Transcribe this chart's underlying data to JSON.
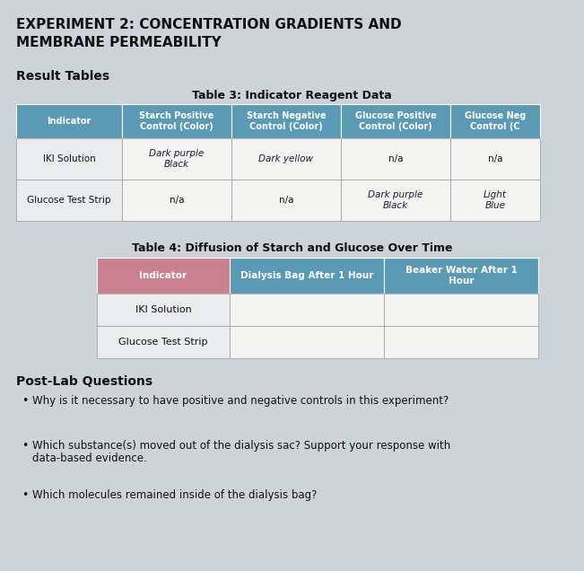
{
  "title_line1": "EXPERIMENT 2: CONCENTRATION GRADIENTS AND",
  "title_line2": "MEMBRANE PERMEABILITY",
  "section_result": "Result Tables",
  "table3_title": "Table 3: Indicator Reagent Data",
  "table3_headers": [
    "Indicator",
    "Starch Positive\nControl (Color)",
    "Starch Negative\nControl (Color)",
    "Glucose Positive\nControl (Color)",
    "Glucose Neg\nControl (C"
  ],
  "table3_row1_label": "IKI Solution",
  "table3_row1_cells": [
    "Dark purple\nBlack",
    "Dark yellow",
    "n/a",
    "n/a"
  ],
  "table3_row2_label": "Glucose Test Strip",
  "table3_row2_cells": [
    "n/a",
    "n/a",
    "Dark purple\nBlack",
    "Light\nBlue"
  ],
  "table4_title": "Table 4: Diffusion of Starch and Glucose Over Time",
  "table4_headers": [
    "Indicator",
    "Dialysis Bag After 1 Hour",
    "Beaker Water After 1\nHour"
  ],
  "table4_row1": "IKI Solution",
  "table4_row2": "Glucose Test Strip",
  "postlab_title": "Post-Lab Questions",
  "postlab_q1": "Why is it necessary to have positive and negative controls in this experiment?",
  "postlab_q2a": "Which substance(s) moved out of the dialysis sac? Support your response with",
  "postlab_q2b": "data-based evidence.",
  "postlab_q3": "Which molecules remained inside of the dialysis bag?",
  "header_blue": "#5a9ab5",
  "header_pink": "#c98090",
  "cell_white": "#f4f4f2",
  "cell_light": "#eaecee",
  "paper_color": "#cdd3d8",
  "handwriting_color": "#1a1a3a",
  "text_dark": "#111111"
}
